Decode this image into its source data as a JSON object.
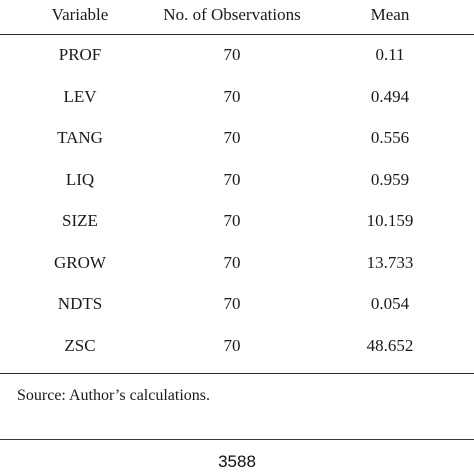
{
  "table": {
    "headers": {
      "variable": "Variable",
      "observations": "No. of Observations",
      "mean": "Mean"
    },
    "rows": [
      {
        "variable": "PROF",
        "observations": "70",
        "mean": "0.11"
      },
      {
        "variable": "LEV",
        "observations": "70",
        "mean": "0.494"
      },
      {
        "variable": "TANG",
        "observations": "70",
        "mean": "0.556"
      },
      {
        "variable": "LIQ",
        "observations": "70",
        "mean": "0.959"
      },
      {
        "variable": "SIZE",
        "observations": "70",
        "mean": "10.159"
      },
      {
        "variable": "GROW",
        "observations": "70",
        "mean": "13.733"
      },
      {
        "variable": "NDTS",
        "observations": "70",
        "mean": "0.054"
      },
      {
        "variable": "ZSC",
        "observations": "70",
        "mean": "48.652"
      }
    ]
  },
  "note": {
    "source": "Source: Author’s calculations."
  },
  "footer": {
    "page_number": "3588"
  }
}
